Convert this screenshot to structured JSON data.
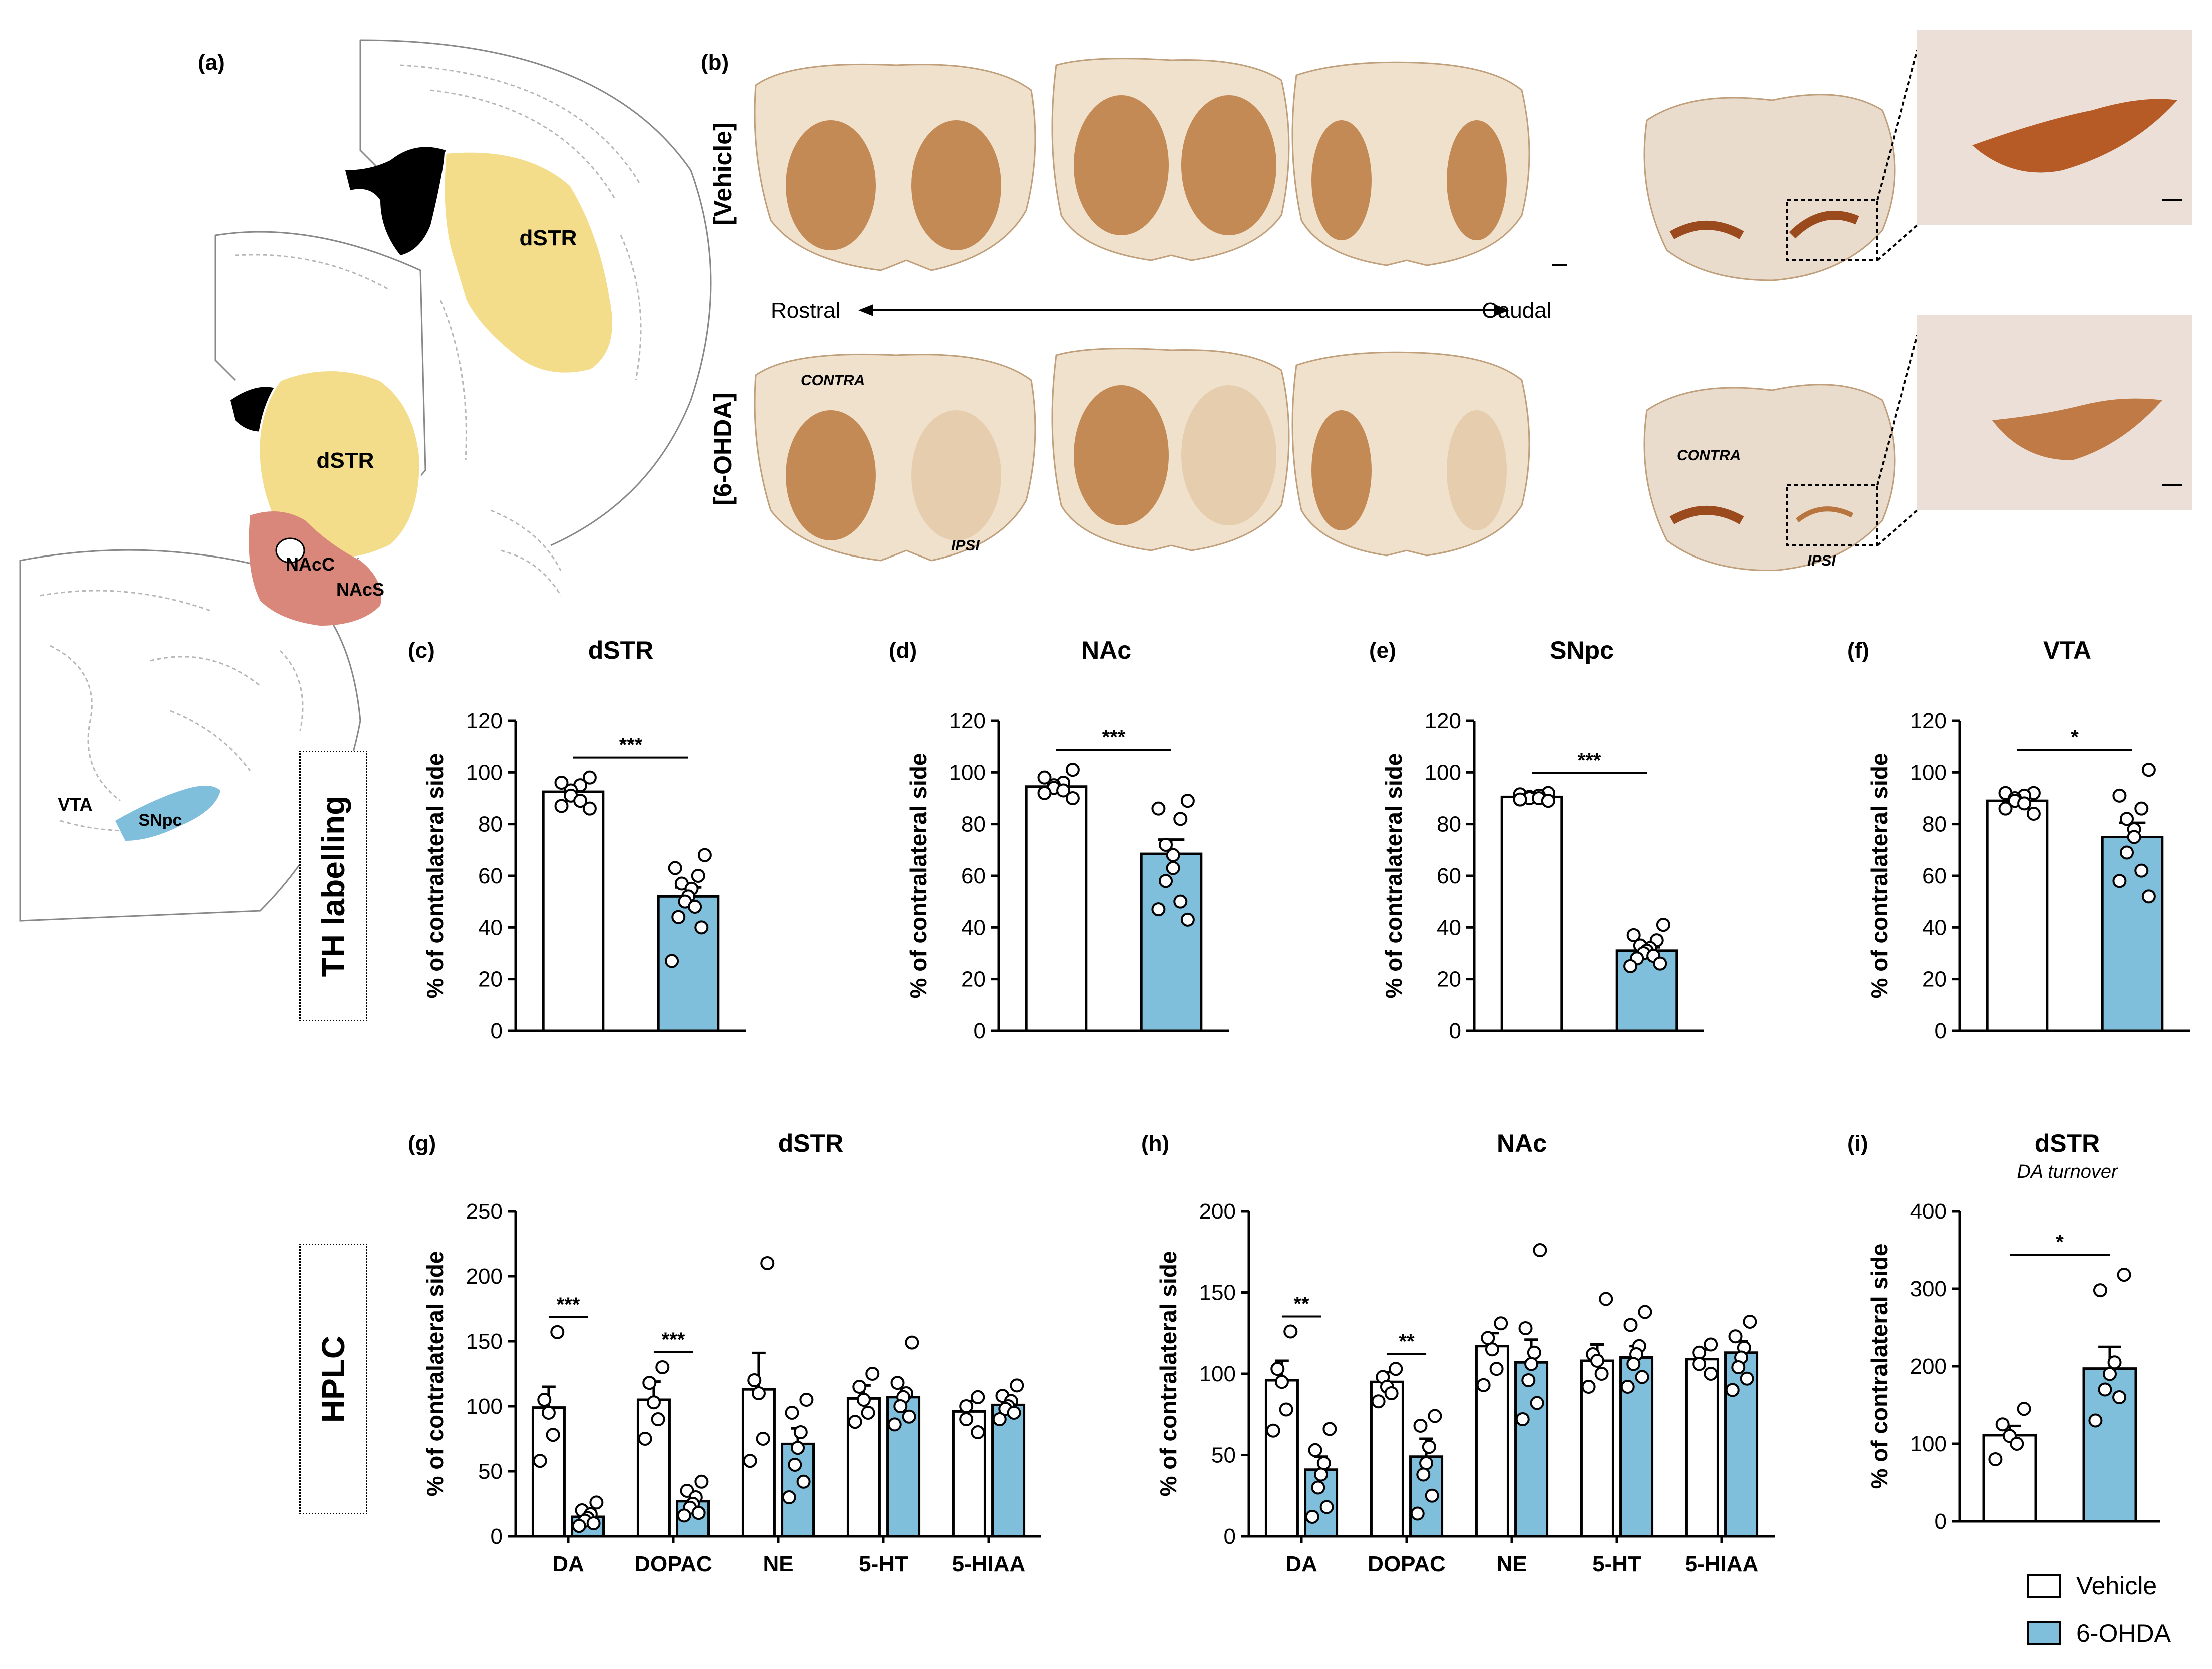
{
  "colors": {
    "vehicle": "#ffffff",
    "ohda": "#80bfdc",
    "stroke": "#000000",
    "stain": "#c8874f"
  },
  "panel_letters": {
    "a": "(a)",
    "b": "(b)",
    "c": "(c)",
    "d": "(d)",
    "e": "(e)",
    "f": "(f)",
    "g": "(g)",
    "h": "(h)",
    "i": "(i)"
  },
  "atlas": {
    "dstr_label": "dSTR",
    "nacc_label": "NAcC",
    "nacs_label": "NAcS",
    "vta_label": "VTA",
    "snpc_label": "SNpc"
  },
  "histology": {
    "row_vehicle": "[Vehicle]",
    "row_ohda": "[6-OHDA]",
    "rostral": "Rostral",
    "caudal": "Caudal",
    "contra": "CONTRA",
    "ipsi": "IPSI"
  },
  "side_boxes": {
    "th": "TH labelling",
    "hplc": "HPLC"
  },
  "legend": {
    "vehicle": "Vehicle",
    "ohda": "6-OHDA"
  },
  "chart_data": [
    {
      "id": "c",
      "type": "bar",
      "title": "dSTR",
      "ylabel": "% of contralateral side",
      "categories": [
        "Vehicle",
        "6-OHDA"
      ],
      "values": [
        92.5,
        52
      ],
      "sem": [
        2.5,
        3.5
      ],
      "ylim": [
        0,
        120
      ],
      "yticks": [
        0,
        20,
        40,
        60,
        80,
        100,
        120
      ],
      "points": [
        [
          98,
          96,
          95,
          93,
          91,
          89,
          87,
          86
        ],
        [
          68,
          63,
          60,
          57,
          55,
          52,
          50,
          48,
          44,
          40,
          27
        ]
      ],
      "significance": [
        "***"
      ]
    },
    {
      "id": "d",
      "type": "bar",
      "title": "NAc",
      "ylabel": "% of contralateral side",
      "categories": [
        "Vehicle",
        "6-OHDA"
      ],
      "values": [
        94.5,
        68.5
      ],
      "sem": [
        1.5,
        5.5
      ],
      "ylim": [
        0,
        120
      ],
      "yticks": [
        0,
        20,
        40,
        60,
        80,
        100,
        120
      ],
      "points": [
        [
          101,
          98,
          96,
          95,
          94,
          93,
          92,
          90
        ],
        [
          89,
          86,
          82,
          72,
          68,
          63,
          58,
          50,
          47,
          43
        ]
      ],
      "significance": [
        "***"
      ]
    },
    {
      "id": "e",
      "type": "bar",
      "title": "SNpc",
      "ylabel": "% of contralateral side",
      "categories": [
        "Vehicle",
        "6-OHDA"
      ],
      "values": [
        90.5,
        31
      ],
      "sem": [
        0.6,
        1.3
      ],
      "ylim": [
        0,
        120
      ],
      "yticks": [
        0,
        20,
        40,
        60,
        80,
        100,
        120
      ],
      "points": [
        [
          92,
          91.5,
          91,
          90.5,
          90,
          90,
          89.5,
          89
        ],
        [
          41,
          37,
          35,
          33,
          32,
          31,
          30,
          29,
          28,
          26,
          25
        ]
      ],
      "significance": [
        "***"
      ]
    },
    {
      "id": "f",
      "type": "bar",
      "title": "VTA",
      "ylabel": "% of contralateral side",
      "categories": [
        "Vehicle",
        "6-OHDA"
      ],
      "values": [
        89,
        75
      ],
      "sem": [
        1.2,
        5.5
      ],
      "ylim": [
        0,
        120
      ],
      "yticks": [
        0,
        20,
        40,
        60,
        80,
        100,
        120
      ],
      "points": [
        [
          92,
          92,
          91,
          90,
          89,
          88,
          86,
          84
        ],
        [
          101,
          91,
          86,
          82,
          78,
          75,
          69,
          62,
          58,
          52
        ]
      ],
      "significance": [
        "*"
      ]
    },
    {
      "id": "g",
      "type": "bar",
      "title": "dSTR",
      "ylabel": "% of contralateral side",
      "categories": [
        "DA",
        "DOPAC",
        "NE",
        "5-HT",
        "5-HIAA"
      ],
      "series": [
        {
          "name": "Vehicle",
          "values": [
            99,
            105,
            113,
            106,
            96
          ],
          "sem": [
            16,
            14,
            28,
            10,
            8
          ]
        },
        {
          "name": "6-OHDA",
          "values": [
            15,
            27,
            71,
            107,
            101
          ],
          "sem": [
            3,
            4,
            12,
            7,
            5
          ]
        }
      ],
      "points": {
        "Vehicle": [
          [
            157,
            105,
            95,
            78,
            58
          ],
          [
            130,
            118,
            103,
            90,
            75
          ],
          [
            210,
            120,
            110,
            75,
            58
          ],
          [
            125,
            115,
            105,
            95,
            88
          ],
          [
            107,
            100,
            90,
            80
          ]
        ],
        "6-OHDA": [
          [
            26,
            20,
            17,
            14,
            12,
            10,
            8
          ],
          [
            42,
            35,
            30,
            25,
            22,
            18,
            16
          ],
          [
            105,
            95,
            80,
            68,
            55,
            42,
            30
          ],
          [
            149,
            118,
            110,
            107,
            100,
            92,
            86
          ],
          [
            116,
            108,
            104,
            100,
            98,
            95,
            90
          ]
        ]
      },
      "ylim": [
        0,
        250
      ],
      "yticks": [
        0,
        50,
        100,
        150,
        200,
        250
      ],
      "significance": [
        "***",
        "***",
        "",
        "",
        ""
      ]
    },
    {
      "id": "h",
      "type": "bar",
      "title": "NAc",
      "ylabel": "% of contralateral side",
      "categories": [
        "DA",
        "DOPAC",
        "NE",
        "5-HT",
        "5-HIAA"
      ],
      "series": [
        {
          "name": "Vehicle",
          "values": [
            96,
            95,
            117,
            108,
            109
          ],
          "sem": [
            12,
            6,
            8,
            10,
            6
          ]
        },
        {
          "name": "6-OHDA",
          "values": [
            41,
            49,
            107,
            110,
            113
          ],
          "sem": [
            8,
            11,
            14,
            7,
            7
          ]
        }
      ],
      "points": {
        "Vehicle": [
          [
            126,
            103,
            95,
            78,
            65
          ],
          [
            103,
            98,
            92,
            88,
            83
          ],
          [
            131,
            122,
            115,
            103,
            93
          ],
          [
            146,
            112,
            108,
            100,
            92
          ],
          [
            118,
            113,
            106,
            100
          ]
        ],
        "6-OHDA": [
          [
            66,
            53,
            45,
            38,
            30,
            18,
            12
          ],
          [
            74,
            68,
            55,
            45,
            38,
            25,
            14
          ],
          [
            176,
            128,
            113,
            106,
            96,
            82,
            72
          ],
          [
            138,
            130,
            117,
            112,
            106,
            98,
            92
          ],
          [
            132,
            123,
            116,
            110,
            104,
            97,
            90
          ]
        ]
      },
      "ylim": [
        0,
        200
      ],
      "yticks": [
        0,
        50,
        100,
        150,
        200
      ],
      "significance": [
        "**",
        "**",
        "",
        "",
        ""
      ]
    },
    {
      "id": "i",
      "type": "bar",
      "title": "dSTR",
      "subtitle": "DA turnover",
      "ylabel": "% of contralateral side",
      "categories": [
        "Vehicle",
        "6-OHDA"
      ],
      "values": [
        111,
        197
      ],
      "sem": [
        12,
        28
      ],
      "ylim": [
        0,
        400
      ],
      "yticks": [
        0,
        100,
        200,
        300,
        400
      ],
      "points": [
        [
          145,
          125,
          110,
          100,
          80
        ],
        [
          318,
          298,
          205,
          190,
          170,
          160,
          130
        ]
      ],
      "significance": [
        "*"
      ]
    }
  ]
}
